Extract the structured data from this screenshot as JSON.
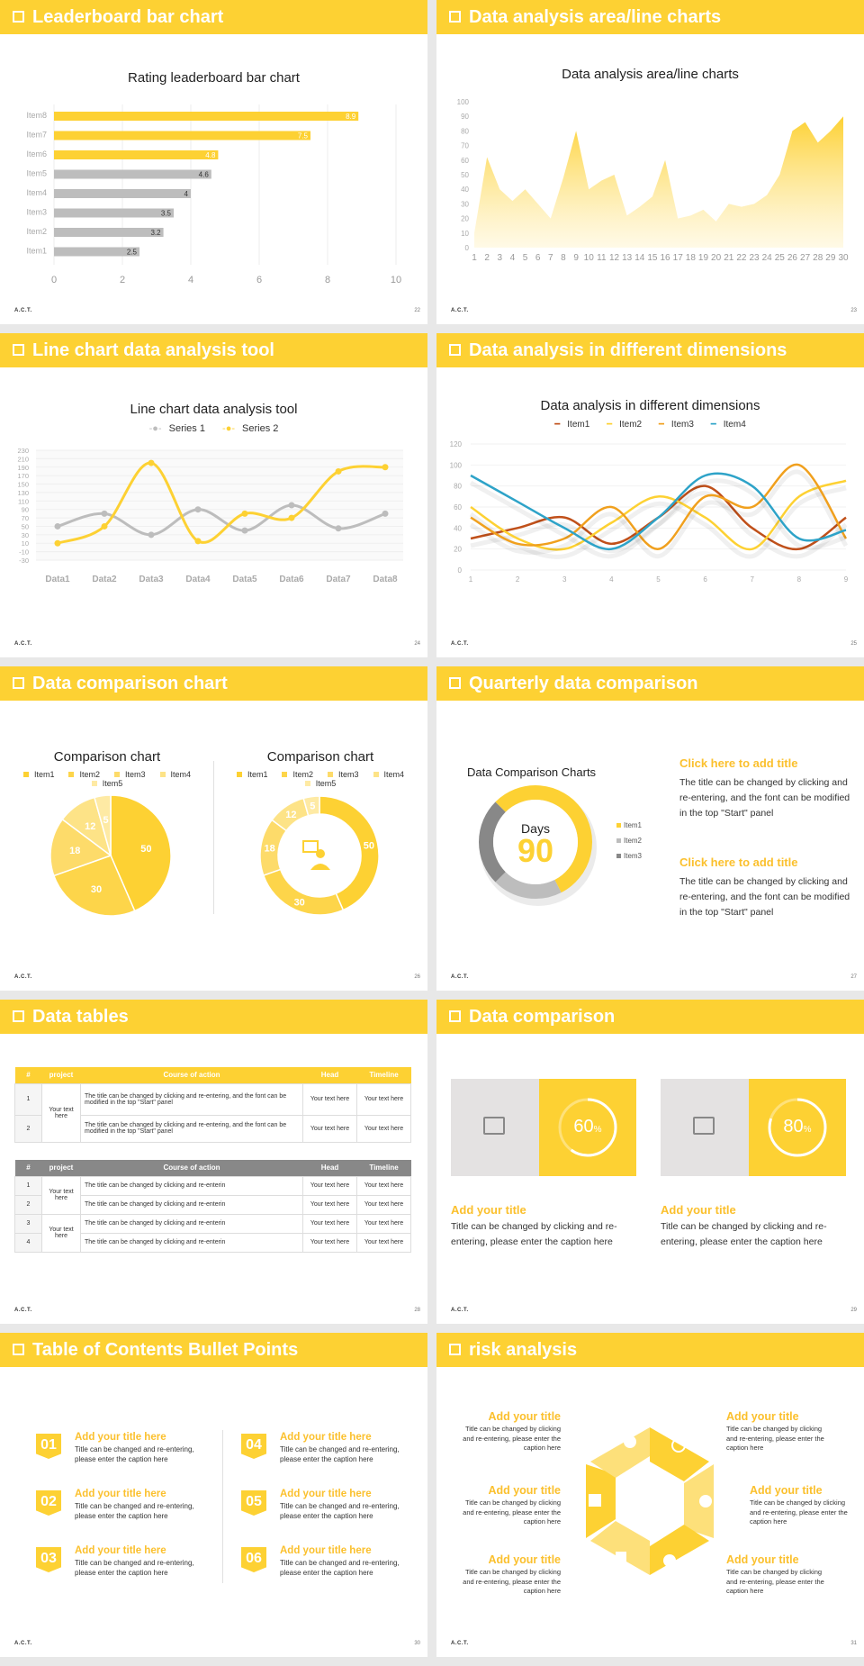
{
  "slides": {
    "s1": {
      "header": "Leaderboard bar chart",
      "page": "22"
    },
    "s2": {
      "header": "Data analysis area/line charts",
      "page": "23"
    },
    "s3": {
      "header": "Line chart data analysis tool",
      "page": "24"
    },
    "s4": {
      "header": "Data analysis in different dimensions",
      "page": "25"
    },
    "s5": {
      "header": "Data comparison chart",
      "page": "26"
    },
    "s6": {
      "header": "Quarterly data comparison",
      "page": "27"
    },
    "s7": {
      "header": "Data tables",
      "page": "28"
    },
    "s8": {
      "header": "Data comparison",
      "page": "29"
    },
    "s9": {
      "header": "Table of Contents Bullet Points",
      "page": "30"
    },
    "s10": {
      "header": "risk analysis",
      "page": "31"
    }
  },
  "logo": "A.C.T.",
  "chart_data": [
    {
      "type": "bar",
      "title": "Rating leaderboard bar chart",
      "categories": [
        "Item8",
        "Item7",
        "Item6",
        "Item5",
        "Item4",
        "Item3",
        "Item2",
        "Item1"
      ],
      "values": [
        8.9,
        7.5,
        4.8,
        4.6,
        4,
        3.5,
        3.2,
        2.5
      ],
      "highlight": [
        true,
        true,
        true,
        false,
        false,
        false,
        false,
        false
      ],
      "xlim": [
        0,
        10
      ],
      "xticks": [
        "0",
        "2",
        "4",
        "6",
        "8",
        "10"
      ],
      "colors": {
        "highlight": "#fdd133",
        "normal": "#bdbdbd"
      }
    },
    {
      "type": "area",
      "title": "Data analysis area/line charts",
      "x": [
        1,
        2,
        3,
        4,
        5,
        6,
        7,
        8,
        9,
        10,
        11,
        12,
        13,
        14,
        15,
        16,
        17,
        18,
        19,
        20,
        21,
        22,
        23,
        24,
        25,
        26,
        27,
        28,
        29,
        30
      ],
      "values": [
        10,
        62,
        40,
        32,
        40,
        30,
        20,
        48,
        80,
        40,
        46,
        50,
        22,
        28,
        35,
        60,
        20,
        22,
        26,
        18,
        30,
        28,
        30,
        36,
        50,
        80,
        86,
        72,
        80,
        90
      ],
      "ylim": [
        0,
        100
      ],
      "yticks": [
        "0",
        "10",
        "20",
        "30",
        "40",
        "50",
        "60",
        "70",
        "80",
        "90",
        "100"
      ]
    },
    {
      "type": "line",
      "title": "Line chart data analysis tool",
      "categories": [
        "Data1",
        "Data2",
        "Data3",
        "Data4",
        "Data5",
        "Data6",
        "Data7",
        "Data8"
      ],
      "series": [
        {
          "name": "Series 1",
          "values": [
            50,
            80,
            30,
            90,
            40,
            100,
            45,
            80
          ],
          "color": "#bdbdbd"
        },
        {
          "name": "Series 2",
          "values": [
            10,
            50,
            200,
            15,
            80,
            70,
            180,
            190
          ],
          "color": "#fdd133"
        }
      ],
      "ylim": [
        -30,
        230
      ],
      "yticks": [
        "230",
        "210",
        "190",
        "170",
        "150",
        "130",
        "110",
        "90",
        "70",
        "50",
        "30",
        "10",
        "-10",
        "-30"
      ]
    },
    {
      "type": "line",
      "title": "Data analysis in different dimensions",
      "x": [
        "1",
        "2",
        "3",
        "4",
        "5",
        "6",
        "7",
        "8",
        "9"
      ],
      "series": [
        {
          "name": "Item1",
          "values": [
            30,
            40,
            50,
            25,
            50,
            80,
            40,
            20,
            50
          ],
          "color": "#c0501a"
        },
        {
          "name": "Item2",
          "values": [
            60,
            30,
            20,
            45,
            70,
            50,
            20,
            70,
            85
          ],
          "color": "#fdd133"
        },
        {
          "name": "Item3",
          "values": [
            50,
            25,
            30,
            60,
            20,
            70,
            60,
            100,
            30
          ],
          "color": "#f0a01e"
        },
        {
          "name": "Item4",
          "values": [
            90,
            65,
            40,
            20,
            50,
            90,
            80,
            30,
            38
          ],
          "color": "#2ea3c8"
        }
      ],
      "ylim": [
        0,
        120
      ],
      "yticks": [
        "0",
        "20",
        "40",
        "60",
        "80",
        "100",
        "120"
      ]
    },
    {
      "type": "pie",
      "title": "Comparison chart",
      "categories": [
        "Item1",
        "Item2",
        "Item3",
        "Item4",
        "Item5"
      ],
      "values": [
        50,
        30,
        18,
        12,
        5
      ]
    },
    {
      "type": "pie",
      "title": "Comparison chart",
      "categories": [
        "Item1",
        "Item2",
        "Item3",
        "Item4",
        "Item5"
      ],
      "values": [
        50,
        30,
        18,
        12,
        5
      ]
    },
    {
      "type": "pie",
      "title": "Data Comparison Charts",
      "categories": [
        "Item1",
        "Item2",
        "Item3"
      ],
      "values": [
        55,
        20,
        25
      ],
      "center_label": "Days",
      "center_value": "90"
    }
  ],
  "quarterly": {
    "items": [
      {
        "title": "Click here to add title",
        "body": "The title can be changed by clicking and re-entering, and the font can be modified in the top \"Start\" panel"
      },
      {
        "title": "Click here to add title",
        "body": "The title can be changed by clicking and re-entering, and the font can be modified in the top \"Start\" panel"
      }
    ]
  },
  "tables": {
    "headers": [
      "#",
      "project",
      "Course of action",
      "Head",
      "Timeline"
    ],
    "t1": {
      "group": "Your text here",
      "rows": [
        {
          "n": "1",
          "action": "The title can be changed by clicking and re-entering, and the font can be modified in the top \"Start\" panel",
          "head": "Your text here",
          "time": "Your text here"
        },
        {
          "n": "2",
          "action": "The title can be changed by clicking and re-entering, and the font can be modified in the top \"Start\" panel",
          "head": "Your text here",
          "time": "Your text here"
        }
      ]
    },
    "t2": {
      "group": "Your text here",
      "rows": [
        {
          "n": "1",
          "action": "The title can be changed by clicking and re-enterin",
          "head": "Your text here",
          "time": "Your text here"
        },
        {
          "n": "2",
          "action": "The title can be changed by clicking and re-enterin",
          "head": "Your text here",
          "time": "Your text here"
        },
        {
          "n": "3",
          "action": "The title can be changed by clicking and re-enterin",
          "head": "Your text here",
          "time": "Your text here"
        },
        {
          "n": "4",
          "action": "The title can be changed by clicking and re-enterin",
          "head": "Your text here",
          "time": "Your text here"
        }
      ]
    }
  },
  "comparison": {
    "cards": [
      {
        "percent": 60,
        "label": "60",
        "unit": "%",
        "title": "Add your title",
        "body": "Title can be changed by clicking and re-entering, please enter the caption here"
      },
      {
        "percent": 80,
        "label": "80",
        "unit": "%",
        "title": "Add your title",
        "body": "Title can be changed by clicking and re-entering, please enter the caption here"
      }
    ]
  },
  "toc": {
    "items": [
      {
        "num": "01",
        "title": "Add your title here",
        "body": "Title can be changed and re-entering, please enter the caption here"
      },
      {
        "num": "02",
        "title": "Add your title here",
        "body": "Title can be changed and re-entering, please enter the caption here"
      },
      {
        "num": "03",
        "title": "Add your title here",
        "body": "Title can be changed and re-entering, please enter the caption here"
      },
      {
        "num": "04",
        "title": "Add your title here",
        "body": "Title can be changed and re-entering, please enter the caption here"
      },
      {
        "num": "05",
        "title": "Add your title here",
        "body": "Title can be changed and re-entering, please enter the caption here"
      },
      {
        "num": "06",
        "title": "Add your title here",
        "body": "Title can be changed and re-entering, please enter the caption here"
      }
    ]
  },
  "risk": {
    "items": [
      {
        "title": "Add your title",
        "body": "Title can be changed by clicking and re-entering, please enter the caption here"
      },
      {
        "title": "Add your title",
        "body": "Title can be changed by clicking and re-entering, please enter the caption here"
      },
      {
        "title": "Add your title",
        "body": "Title can be changed by clicking and re-entering, please enter the caption here"
      },
      {
        "title": "Add your title",
        "body": "Title can be changed by clicking and re-entering, please enter the caption here"
      },
      {
        "title": "Add your title",
        "body": "Title can be changed by clicking and re-entering, please enter the caption here"
      },
      {
        "title": "Add your title",
        "body": "Title can be changed by clicking and re-entering, please enter the caption here"
      }
    ]
  }
}
